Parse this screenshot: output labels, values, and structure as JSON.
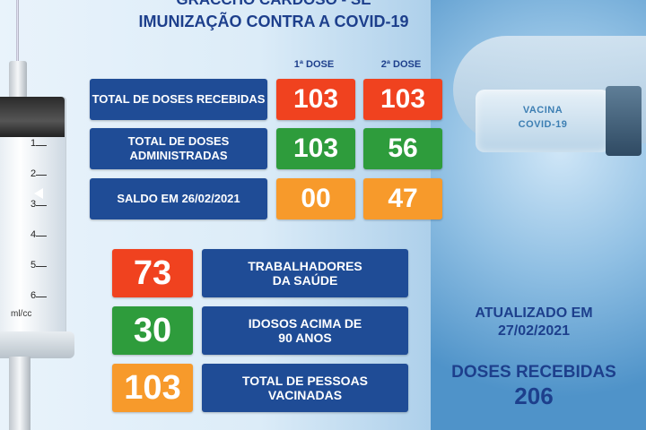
{
  "header": {
    "line1": "GRACCHO CARDOSO - SE",
    "line2": "IMUNIZAÇÃO CONTRA A COVID-19"
  },
  "dose_headers": [
    "1ª DOSE",
    "2ª DOSE"
  ],
  "rows": [
    {
      "label": "TOTAL DE DOSES RECEBIDAS",
      "dose1": "103",
      "dose2": "103",
      "color": "#f0421f"
    },
    {
      "label": "TOTAL DE DOSES ADMINISTRADAS",
      "dose1": "103",
      "dose2": "56",
      "color": "#2e9c3c"
    },
    {
      "label": "SALDO EM 26/02/2021",
      "dose1": "00",
      "dose2": "47",
      "color": "#f79a2b"
    }
  ],
  "groups": [
    {
      "value": "73",
      "label_line1": "TRABALHADORES",
      "label_line2": "DA SAÚDE",
      "color": "#f0421f"
    },
    {
      "value": "30",
      "label_line1": "IDOSOS ACIMA DE",
      "label_line2": "90 ANOS",
      "color": "#2e9c3c"
    },
    {
      "value": "103",
      "label_line1": "TOTAL DE PESSOAS",
      "label_line2": "VACINADAS",
      "color": "#f79a2b"
    }
  ],
  "updated": {
    "label": "ATUALIZADO EM",
    "date": "27/02/2021"
  },
  "doses_received": {
    "label": "DOSES RECEBIDAS",
    "value": "206"
  },
  "vial": {
    "line1": "VACINA",
    "line2": "COVID-19"
  },
  "syringe": {
    "ticks": [
      "1",
      "2",
      "3",
      "4",
      "5",
      "6"
    ],
    "unit": "ml/cc"
  },
  "colors": {
    "navy": "#1f4c96",
    "title": "#1d3f8c",
    "red": "#f0421f",
    "green": "#2e9c3c",
    "orange": "#f79a2b"
  }
}
